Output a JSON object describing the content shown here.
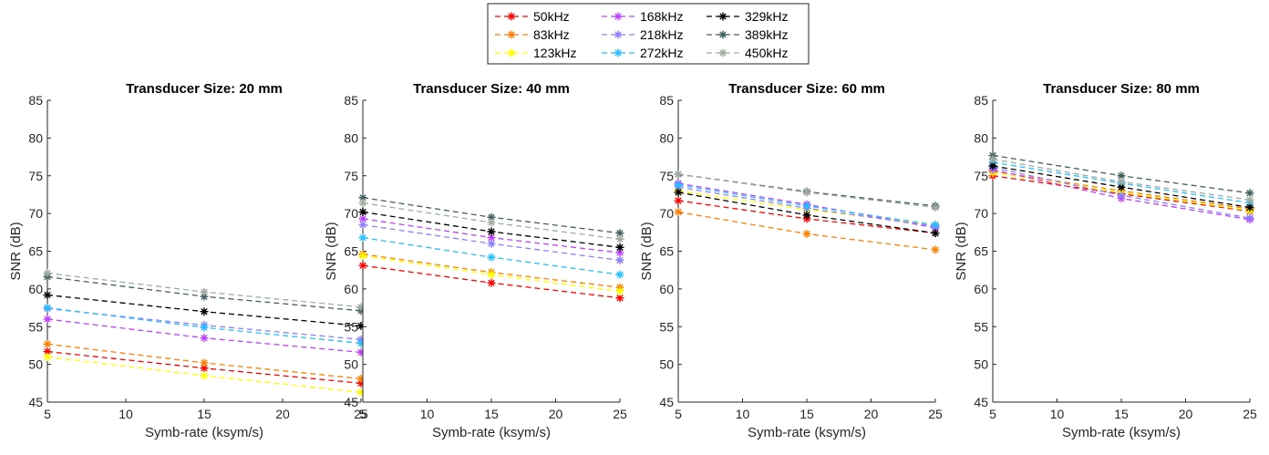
{
  "chart_data": [
    {
      "type": "line",
      "title": "Transducer Size: 20 mm",
      "xlabel": "Symb-rate (ksym/s)",
      "ylabel": "SNR (dB)",
      "x": [
        5,
        15,
        25
      ],
      "xlim": [
        5,
        25
      ],
      "ylim": [
        45,
        85
      ],
      "xticks": [
        5,
        10,
        15,
        20,
        25
      ],
      "yticks": [
        45,
        50,
        55,
        60,
        65,
        70,
        75,
        80,
        85
      ],
      "series": [
        {
          "name": "50kHz",
          "values": [
            51.7,
            49.5,
            47.5
          ]
        },
        {
          "name": "83kHz",
          "values": [
            52.7,
            50.2,
            48.1
          ]
        },
        {
          "name": "123kHz",
          "values": [
            51.0,
            48.5,
            46.3
          ]
        },
        {
          "name": "168kHz",
          "values": [
            56.0,
            53.5,
            51.6
          ]
        },
        {
          "name": "218kHz",
          "values": [
            57.4,
            55.2,
            53.3
          ]
        },
        {
          "name": "272kHz",
          "values": [
            57.5,
            54.9,
            52.8
          ]
        },
        {
          "name": "329kHz",
          "values": [
            59.2,
            57.0,
            55.1
          ]
        },
        {
          "name": "389kHz",
          "values": [
            61.6,
            59.0,
            57.1
          ]
        },
        {
          "name": "450kHz",
          "values": [
            62.1,
            59.6,
            57.6
          ]
        }
      ]
    },
    {
      "type": "line",
      "title": "Transducer Size: 40 mm",
      "xlabel": "Symb-rate (ksym/s)",
      "ylabel": "SNR (dB)",
      "x": [
        5,
        15,
        25
      ],
      "xlim": [
        5,
        25
      ],
      "ylim": [
        45,
        85
      ],
      "xticks": [
        5,
        10,
        15,
        20,
        25
      ],
      "yticks": [
        45,
        50,
        55,
        60,
        65,
        70,
        75,
        80,
        85
      ],
      "series": [
        {
          "name": "50kHz",
          "values": [
            63.1,
            60.8,
            58.8
          ]
        },
        {
          "name": "83kHz",
          "values": [
            64.6,
            62.2,
            60.2
          ]
        },
        {
          "name": "123kHz",
          "values": [
            64.4,
            61.9,
            59.7
          ]
        },
        {
          "name": "168kHz",
          "values": [
            69.3,
            66.8,
            64.8
          ]
        },
        {
          "name": "218kHz",
          "values": [
            68.5,
            66.0,
            63.8
          ]
        },
        {
          "name": "272kHz",
          "values": [
            66.8,
            64.2,
            61.9
          ]
        },
        {
          "name": "329kHz",
          "values": [
            70.2,
            67.6,
            65.5
          ]
        },
        {
          "name": "389kHz",
          "values": [
            72.1,
            69.5,
            67.4
          ]
        },
        {
          "name": "450kHz",
          "values": [
            71.4,
            68.8,
            66.6
          ]
        }
      ]
    },
    {
      "type": "line",
      "title": "Transducer Size: 60 mm",
      "xlabel": "Symb-rate (ksym/s)",
      "ylabel": "SNR (dB)",
      "x": [
        5,
        15,
        25
      ],
      "xlim": [
        5,
        25
      ],
      "ylim": [
        45,
        85
      ],
      "xticks": [
        5,
        10,
        15,
        20,
        25
      ],
      "yticks": [
        45,
        50,
        55,
        60,
        65,
        70,
        75,
        80,
        85
      ],
      "series": [
        {
          "name": "50kHz",
          "values": [
            71.7,
            69.3,
            67.4
          ]
        },
        {
          "name": "83kHz",
          "values": [
            70.2,
            67.3,
            65.2
          ]
        },
        {
          "name": "123kHz",
          "values": [
            73.0,
            70.5,
            68.5
          ]
        },
        {
          "name": "168kHz",
          "values": [
            74.0,
            71.2,
            68.1
          ]
        },
        {
          "name": "218kHz",
          "values": [
            73.5,
            70.7,
            68.3
          ]
        },
        {
          "name": "272kHz",
          "values": [
            73.8,
            71.0,
            68.5
          ]
        },
        {
          "name": "329kHz",
          "values": [
            72.8,
            69.8,
            67.4
          ]
        },
        {
          "name": "389kHz",
          "values": [
            75.2,
            72.9,
            71.0
          ]
        },
        {
          "name": "450kHz",
          "values": [
            75.2,
            72.8,
            70.8
          ]
        }
      ]
    },
    {
      "type": "line",
      "title": "Transducer Size: 80 mm",
      "xlabel": "Symb-rate (ksym/s)",
      "ylabel": "SNR (dB)",
      "x": [
        5,
        15,
        25
      ],
      "xlim": [
        5,
        25
      ],
      "ylim": [
        45,
        85
      ],
      "xticks": [
        5,
        10,
        15,
        20,
        25
      ],
      "yticks": [
        45,
        50,
        55,
        60,
        65,
        70,
        75,
        80,
        85
      ],
      "series": [
        {
          "name": "50kHz",
          "values": [
            75.0,
            72.6,
            70.3
          ]
        },
        {
          "name": "83kHz",
          "values": [
            75.6,
            73.0,
            70.6
          ]
        },
        {
          "name": "123kHz",
          "values": [
            75.4,
            72.8,
            70.4
          ]
        },
        {
          "name": "168kHz",
          "values": [
            75.8,
            72.0,
            69.2
          ]
        },
        {
          "name": "218kHz",
          "values": [
            76.1,
            72.4,
            69.4
          ]
        },
        {
          "name": "272kHz",
          "values": [
            76.8,
            74.0,
            71.4
          ]
        },
        {
          "name": "329kHz",
          "values": [
            76.3,
            73.5,
            70.8
          ]
        },
        {
          "name": "389kHz",
          "values": [
            77.7,
            75.0,
            72.7
          ]
        },
        {
          "name": "450kHz",
          "values": [
            77.2,
            74.2,
            71.8
          ]
        }
      ]
    }
  ],
  "legend": {
    "placement": "top-center",
    "entries": [
      "50kHz",
      "83kHz",
      "123kHz",
      "168kHz",
      "218kHz",
      "272kHz",
      "329kHz",
      "389kHz",
      "450kHz"
    ]
  },
  "colors": {
    "50kHz": "#ff0000",
    "83kHz": "#ff8000",
    "123kHz": "#ffff00",
    "168kHz": "#bf40ff",
    "218kHz": "#8c7fff",
    "272kHz": "#26bfff",
    "329kHz": "#000000",
    "389kHz": "#406060",
    "450kHz": "#a0aaa0"
  }
}
